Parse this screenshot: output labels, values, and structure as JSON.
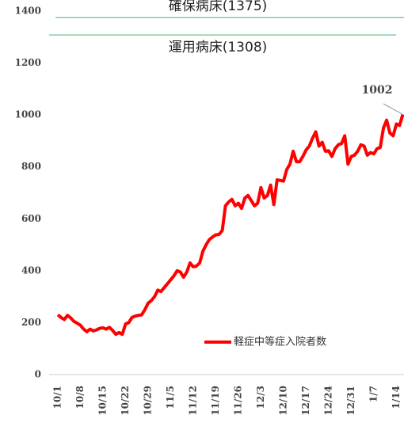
{
  "chart_data": {
    "type": "line",
    "categories": [
      "10/1",
      null,
      null,
      null,
      null,
      null,
      null,
      "10/8",
      null,
      null,
      null,
      null,
      null,
      null,
      "10/15",
      null,
      null,
      null,
      null,
      null,
      null,
      "10/22",
      null,
      null,
      null,
      null,
      null,
      null,
      "10/29",
      null,
      null,
      null,
      null,
      null,
      null,
      "11/5",
      null,
      null,
      null,
      null,
      null,
      null,
      "11/12",
      null,
      null,
      null,
      null,
      null,
      null,
      "11/19",
      null,
      null,
      null,
      null,
      null,
      null,
      "11/26",
      null,
      null,
      null,
      null,
      null,
      null,
      "12/3",
      null,
      null,
      null,
      null,
      null,
      null,
      "12/10",
      null,
      null,
      null,
      null,
      null,
      null,
      "12/17",
      null,
      null,
      null,
      null,
      null,
      null,
      "12/24",
      null,
      null,
      null,
      null,
      null,
      null,
      "12/31",
      null,
      null,
      null,
      null,
      null,
      null,
      "1/7",
      null,
      null,
      null,
      null,
      null,
      null,
      "1/14",
      null,
      null
    ],
    "series": [
      {
        "name": "軽症中等症入院者数",
        "color": "#ff0000",
        "values": [
          230,
          220,
          212,
          228,
          218,
          205,
          198,
          190,
          175,
          165,
          175,
          168,
          172,
          178,
          180,
          175,
          182,
          170,
          155,
          162,
          155,
          195,
          200,
          220,
          225,
          228,
          230,
          250,
          275,
          285,
          300,
          325,
          320,
          335,
          350,
          365,
          380,
          400,
          395,
          375,
          395,
          430,
          415,
          418,
          430,
          475,
          500,
          520,
          530,
          538,
          540,
          555,
          650,
          665,
          675,
          650,
          660,
          640,
          680,
          690,
          670,
          650,
          660,
          720,
          680,
          690,
          730,
          655,
          750,
          748,
          745,
          790,
          810,
          860,
          820,
          820,
          840,
          865,
          880,
          910,
          935,
          880,
          895,
          860,
          862,
          840,
          870,
          885,
          890,
          920,
          810,
          840,
          845,
          860,
          885,
          880,
          845,
          855,
          850,
          870,
          875,
          950,
          980,
          930,
          920,
          965,
          960,
          1002
        ]
      }
    ],
    "reference_lines": [
      {
        "label": "確保病床(1375)",
        "value": 1375,
        "color": "#3cb371"
      },
      {
        "label": "運用病床(1308)",
        "value": 1308,
        "color": "#3cb371"
      }
    ],
    "ylim": [
      0,
      1400
    ],
    "yticks": [
      0,
      200,
      400,
      600,
      800,
      1000,
      1200,
      1400
    ],
    "grid": false,
    "legend": "lower right"
  }
}
